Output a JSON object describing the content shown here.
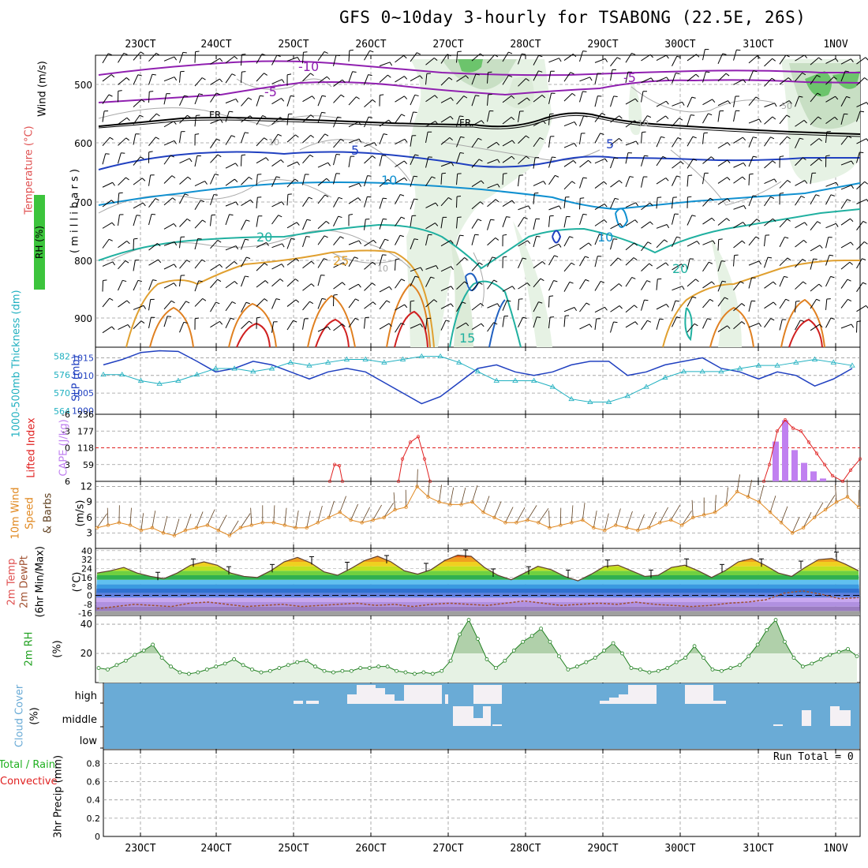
{
  "title": "GFS 0~10day 3-hourly for TSABONG (22.5E, 26S)",
  "x_ticks": [
    "23OCT",
    "24OCT",
    "25OCT",
    "26OCT",
    "27OCT",
    "28OCT",
    "29OCT",
    "30OCT",
    "31OCT",
    "1NOV"
  ],
  "panels": {
    "upper": {
      "ylabels": {
        "rh": "RH (%)",
        "temp": "Temperature (°C)",
        "wind": "Wind (m/s)",
        "millibars": "( m i l l i b a r s )"
      },
      "yticks": [
        "500",
        "600",
        "700",
        "800",
        "900"
      ],
      "contour_labels": [
        "-10",
        "-5",
        "FR",
        "FR",
        "-5",
        "5",
        "10",
        "10",
        "20",
        "25",
        "10",
        "15",
        "20",
        "5",
        "10",
        "50",
        "10"
      ]
    },
    "thickness": {
      "ylabels": {
        "thick": "1000-500mb Thickness (dm)",
        "slp": "SLP (mb)"
      },
      "left_ticks": [
        "582",
        "576",
        "570",
        "564"
      ],
      "right_ticks": [
        "1015",
        "1010",
        "1005",
        "1000"
      ]
    },
    "cape": {
      "ylabels": {
        "li": "Lifted Index",
        "cape": "CAPE (J/kg)"
      },
      "left_ticks": [
        "-6",
        "-3",
        "0",
        "3",
        "6"
      ],
      "right_ticks": [
        "236",
        "177",
        "118",
        "59"
      ]
    },
    "wind10": {
      "ylabels": {
        "wind": "10m Wind",
        "speed": "Speed",
        "barbs": "& Barbs",
        "units": "(m/s)"
      },
      "yticks": [
        "12",
        "9",
        "6",
        "3"
      ]
    },
    "temp2m": {
      "ylabels": {
        "temp": "2m Temp",
        "dew": "2m DewPt",
        "minmax": "(6hr Min/Max)",
        "units": "(°C)"
      },
      "yticks": [
        "40",
        "32",
        "24",
        "16",
        "8",
        "0",
        "-8",
        "-16"
      ]
    },
    "rh2m": {
      "ylabels": {
        "rh": "2m RH",
        "units": "(%)"
      },
      "yticks": [
        "40",
        "20"
      ]
    },
    "cloud": {
      "ylabels": {
        "cloud": "Cloud Cover",
        "units": "(%)"
      },
      "levels": [
        "high",
        "middle",
        "low"
      ]
    },
    "precip": {
      "ylabels": {
        "total": "Total / Rain",
        "conv": "Convective",
        "precip": "3hr Precip (mm)"
      },
      "yticks": [
        "0.8",
        "0.6",
        "0.4",
        "0.2",
        "0"
      ],
      "run_total": "Run Total = 0"
    }
  },
  "colors": {
    "slp": "#2040c0",
    "thickness": "#20b0c0",
    "li": "#e02020",
    "cape": "#c080f0",
    "wind": "#e08820",
    "rh": "#208020",
    "cloud": "#6aabd6",
    "dewpoint": "#a05030"
  },
  "chart_data": [
    {
      "type": "line",
      "title": "SLP (mb) and 1000-500mb Thickness (dm)",
      "x": [
        "22OCT12",
        "22OCT18",
        "23OCT00",
        "23OCT06",
        "23OCT12",
        "23OCT18",
        "24OCT00",
        "24OCT06",
        "24OCT12",
        "24OCT18",
        "25OCT00",
        "25OCT06",
        "25OCT12",
        "25OCT18",
        "26OCT00",
        "26OCT06",
        "26OCT12",
        "26OCT18",
        "27OCT00",
        "27OCT06",
        "27OCT12",
        "27OCT18",
        "28OCT00",
        "28OCT06",
        "28OCT12",
        "28OCT18",
        "29OCT00",
        "29OCT06",
        "29OCT12",
        "29OCT18",
        "30OCT00",
        "30OCT06",
        "30OCT12",
        "30OCT18",
        "31OCT00",
        "31OCT06",
        "31OCT12",
        "31OCT18",
        "1NOV00",
        "1NOV06",
        "1NOV12"
      ],
      "series": [
        {
          "name": "SLP",
          "values": [
            1013,
            1014.5,
            1016.5,
            1017,
            1016.8,
            1014,
            1011,
            1012,
            1014,
            1013,
            1011,
            1009,
            1011,
            1012,
            1011,
            1008,
            1005,
            1002,
            1004,
            1008,
            1012,
            1013,
            1011,
            1010,
            1011,
            1013,
            1014,
            1014,
            1010,
            1011,
            1013,
            1014,
            1015,
            1012,
            1011,
            1009,
            1011,
            1010,
            1007,
            1009,
            1012
          ]
        },
        {
          "name": "Thickness",
          "values": [
            576,
            576,
            574,
            573,
            574,
            576,
            578,
            578,
            577,
            578,
            580,
            579,
            580,
            581,
            581,
            580,
            581,
            582,
            582,
            580,
            577,
            574,
            574,
            574,
            572,
            568,
            567,
            567,
            569,
            572,
            575,
            577,
            577,
            577,
            578,
            579,
            579,
            580,
            581,
            580,
            579
          ]
        }
      ],
      "ylim_left": [
        563,
        585
      ],
      "ylim_right": [
        999,
        1018
      ]
    },
    {
      "type": "bar",
      "title": "CAPE (J/kg) and Lifted Index",
      "x": [
        "31OCT12",
        "31OCT15",
        "31OCT18",
        "31OCT21",
        "1NOV00",
        "1NOV03"
      ],
      "series": [
        {
          "name": "CAPE",
          "values": [
            140,
            215,
            110,
            65,
            35,
            10
          ]
        }
      ],
      "ylim": [
        0,
        236
      ]
    },
    {
      "type": "line",
      "title": "10m Wind Speed (m/s)",
      "series": [
        {
          "name": "Speed",
          "values": [
            4,
            4.5,
            5,
            4.5,
            3.5,
            4,
            3,
            2.5,
            3.5,
            4,
            4.5,
            3.5,
            2.5,
            4,
            4.5,
            5,
            5,
            4.5,
            4,
            4,
            5,
            6,
            7,
            5.5,
            5,
            5.5,
            6,
            7.5,
            8,
            12,
            10,
            9,
            8.5,
            8.5,
            9,
            7,
            6,
            5,
            5,
            5.5,
            5,
            4,
            4.5,
            5,
            5.5,
            4,
            3.5,
            4.5,
            4,
            3.5,
            4,
            5,
            5.5,
            4.5,
            6,
            6.5,
            7,
            8.5,
            11,
            10,
            9,
            7,
            5,
            3,
            4,
            6,
            7.5,
            9,
            10,
            8
          ]
        }
      ],
      "ylim": [
        0,
        13
      ]
    },
    {
      "type": "area",
      "title": "2m Temp (°C)",
      "series": [
        {
          "name": "2m Temp",
          "values": [
            20,
            22,
            25,
            20,
            17,
            15,
            20,
            27,
            30,
            27,
            20,
            17,
            16,
            22,
            30,
            34,
            29,
            21,
            18,
            24,
            31,
            35,
            30,
            22,
            19,
            23,
            31,
            36,
            35,
            25,
            18,
            14,
            20,
            26,
            23,
            17,
            13,
            19,
            26,
            27,
            22,
            17,
            18,
            25,
            27,
            22,
            16,
            22,
            30,
            33,
            27,
            20,
            17,
            25,
            32,
            33,
            28,
            22
          ]
        },
        {
          "name": "2m DewPt",
          "values": [
            -12,
            -10,
            -8,
            -9,
            -10,
            -7,
            -6,
            -8,
            -10,
            -9,
            -8,
            -10,
            -9,
            -8,
            -7,
            -9,
            -8,
            -10,
            -8,
            -7,
            -8,
            -9,
            -7,
            -5,
            -7,
            -9,
            -8,
            -7,
            -8,
            -6,
            -8,
            -9,
            -10,
            -9,
            -7,
            -6,
            -4,
            2,
            4,
            1,
            -3,
            -2
          ]
        }
      ],
      "ylim": [
        -18,
        42
      ]
    },
    {
      "type": "area",
      "title": "2m RH (%)",
      "series": [
        {
          "name": "2m RH",
          "values": [
            10,
            9,
            12,
            15,
            19,
            22,
            26,
            17,
            11,
            7,
            6,
            7,
            9,
            11,
            13,
            16,
            12,
            9,
            7,
            8,
            10,
            12,
            14,
            15,
            11,
            8,
            7,
            8,
            8,
            10,
            10,
            11,
            11,
            8,
            7,
            6,
            7,
            6,
            8,
            15,
            33,
            43,
            30,
            16,
            10,
            15,
            22,
            28,
            32,
            37,
            28,
            18,
            9,
            11,
            14,
            17,
            22,
            27,
            20,
            10,
            9,
            7,
            8,
            10,
            14,
            17,
            25,
            17,
            9,
            8,
            10,
            12,
            18,
            26,
            36,
            43,
            28,
            17,
            11,
            13,
            16,
            19,
            21,
            23,
            18
          ]
        }
      ],
      "ylim": [
        0,
        46
      ]
    },
    {
      "type": "bar",
      "title": "3hr Precip (mm)",
      "series": [
        {
          "name": "Total / Rain",
          "values": []
        },
        {
          "name": "Convective",
          "values": []
        }
      ],
      "ylim": [
        0,
        0.95
      ]
    }
  ]
}
